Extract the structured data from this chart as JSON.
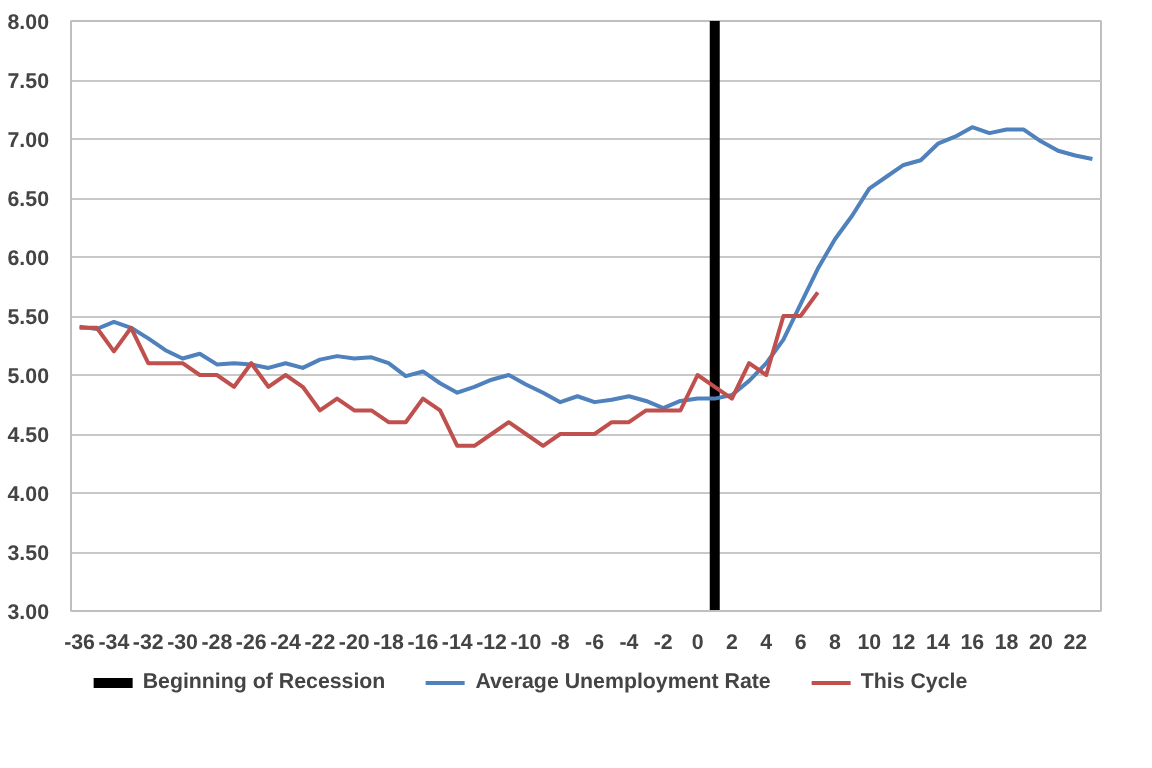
{
  "chart_data": {
    "type": "line",
    "x": [
      -36,
      -35,
      -34,
      -33,
      -32,
      -31,
      -30,
      -29,
      -28,
      -27,
      -26,
      -25,
      -24,
      -23,
      -22,
      -21,
      -20,
      -19,
      -18,
      -17,
      -16,
      -15,
      -14,
      -13,
      -12,
      -11,
      -10,
      -9,
      -8,
      -7,
      -6,
      -5,
      -4,
      -3,
      -2,
      -1,
      0,
      1,
      2,
      3,
      4,
      5,
      6,
      7,
      8,
      9,
      10,
      11,
      12,
      13,
      14,
      15,
      16,
      17,
      18,
      19,
      20,
      21,
      22,
      23
    ],
    "series": [
      {
        "name": "Average Unemployment Rate",
        "color": "#4f81bd",
        "values": [
          5.41,
          5.39,
          5.45,
          5.4,
          5.31,
          5.21,
          5.14,
          5.18,
          5.09,
          5.1,
          5.09,
          5.06,
          5.1,
          5.06,
          5.13,
          5.16,
          5.14,
          5.15,
          5.1,
          4.99,
          5.03,
          4.93,
          4.85,
          4.9,
          4.96,
          5.0,
          4.92,
          4.85,
          4.77,
          4.82,
          4.77,
          4.79,
          4.82,
          4.78,
          4.72,
          4.78,
          4.8,
          4.8,
          4.83,
          4.95,
          5.1,
          5.3,
          5.6,
          5.9,
          6.15,
          6.35,
          6.58,
          6.68,
          6.78,
          6.82,
          6.96,
          7.02,
          7.1,
          7.05,
          7.08,
          7.08,
          6.98,
          6.9,
          6.86,
          6.83
        ]
      },
      {
        "name": "This Cycle",
        "color": "#c0504d",
        "values": [
          5.4,
          5.4,
          5.2,
          5.4,
          5.1,
          5.1,
          5.1,
          5.0,
          5.0,
          4.9,
          5.1,
          4.9,
          5.0,
          4.9,
          4.7,
          4.8,
          4.7,
          4.7,
          4.6,
          4.6,
          4.8,
          4.7,
          4.4,
          4.4,
          4.5,
          4.6,
          4.5,
          4.4,
          4.5,
          4.5,
          4.5,
          4.6,
          4.6,
          4.7,
          4.7,
          4.7,
          5.0,
          4.9,
          4.8,
          5.1,
          5.0,
          5.5,
          5.5,
          5.7,
          null,
          null,
          null,
          null,
          null,
          null,
          null,
          null,
          null,
          null,
          null,
          null,
          null,
          null,
          null,
          null
        ]
      }
    ],
    "ref_lines": [
      {
        "axis": "x",
        "value": 1,
        "label": "Beginning of Recession",
        "color": "#000000"
      }
    ],
    "xlim": [
      -36.5,
      23.5
    ],
    "xticks": [
      -36,
      -34,
      -32,
      -30,
      -28,
      -26,
      -24,
      -22,
      -20,
      -18,
      -16,
      -14,
      -12,
      -10,
      -8,
      -6,
      -4,
      -2,
      0,
      2,
      4,
      6,
      8,
      10,
      12,
      14,
      16,
      18,
      20,
      22
    ],
    "ylim": [
      3,
      8
    ],
    "yticks": [
      {
        "value": 3,
        "label": "3.00"
      },
      {
        "value": 3.5,
        "label": "3.50"
      },
      {
        "value": 4,
        "label": "4.00"
      },
      {
        "value": 4.5,
        "label": "4.50"
      },
      {
        "value": 5,
        "label": "5.00"
      },
      {
        "value": 5.5,
        "label": "5.50"
      },
      {
        "value": 6,
        "label": "6.00"
      },
      {
        "value": 6.5,
        "label": "6.50"
      },
      {
        "value": 7,
        "label": "7.00"
      },
      {
        "value": 7.5,
        "label": "7.50"
      },
      {
        "value": 8,
        "label": "8.00"
      }
    ],
    "grid": "y",
    "legend": "bottom",
    "marker": "none",
    "line_style": "solid"
  }
}
